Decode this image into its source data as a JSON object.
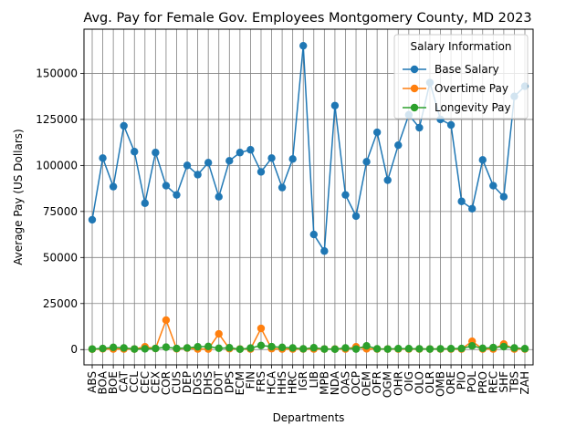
{
  "chart_data": {
    "type": "line",
    "title": "Avg. Pay for Female Gov. Employees Montgomery County, MD 2023",
    "xlabel": "Departments",
    "ylabel": "Average Pay (US Dollars)",
    "ylim": [
      -8300,
      174000
    ],
    "yticks": [
      0,
      25000,
      50000,
      75000,
      100000,
      125000,
      150000
    ],
    "grid": true,
    "legend": {
      "title": "Salary Information",
      "placement": "top-right"
    },
    "categories": [
      "ABS",
      "BOA",
      "BOE",
      "CAT",
      "CCL",
      "CEC",
      "CEX",
      "COR",
      "CUS",
      "DEP",
      "DGS",
      "DHS",
      "DOT",
      "DPS",
      "ECM",
      "FIN",
      "FRS",
      "HCA",
      "HHS",
      "HRC",
      "IGR",
      "LIB",
      "MPB",
      "NDA",
      "OAS",
      "OCP",
      "OEM",
      "OFR",
      "OGM",
      "OHR",
      "OIG",
      "OLO",
      "OLR",
      "OMB",
      "ORE",
      "PIO",
      "POL",
      "PRO",
      "REC",
      "SHF",
      "TBS",
      "ZAH"
    ],
    "series": [
      {
        "name": "Base Salary",
        "color": "#1f77b4",
        "values": [
          70500,
          104000,
          88500,
          121500,
          107500,
          79500,
          107000,
          89000,
          84000,
          100000,
          95000,
          101500,
          83000,
          102500,
          107000,
          108500,
          96500,
          104000,
          88000,
          103500,
          165000,
          62500,
          53500,
          132500,
          84000,
          72500,
          102000,
          118000,
          92000,
          111000,
          127500,
          120500,
          145000,
          125000,
          122000,
          80500,
          76500,
          103000,
          89000,
          83000,
          137500,
          143000
        ]
      },
      {
        "name": "Overtime Pay",
        "color": "#ff7f0e",
        "values": [
          200,
          400,
          300,
          300,
          300,
          1500,
          600,
          16000,
          400,
          800,
          300,
          300,
          8500,
          500,
          300,
          300,
          11500,
          500,
          300,
          300,
          300,
          300,
          300,
          300,
          300,
          1500,
          400,
          300,
          300,
          300,
          300,
          300,
          300,
          300,
          300,
          300,
          4500,
          300,
          300,
          3000,
          300,
          300
        ]
      },
      {
        "name": "Longevity Pay",
        "color": "#2ca02c",
        "values": [
          300,
          600,
          1200,
          900,
          300,
          400,
          600,
          1300,
          600,
          900,
          1500,
          1700,
          700,
          1000,
          200,
          800,
          2200,
          1600,
          1200,
          900,
          400,
          1000,
          300,
          200,
          900,
          300,
          2000,
          400,
          300,
          500,
          500,
          400,
          300,
          400,
          500,
          600,
          2000,
          700,
          1100,
          1600,
          900,
          500
        ]
      }
    ]
  }
}
